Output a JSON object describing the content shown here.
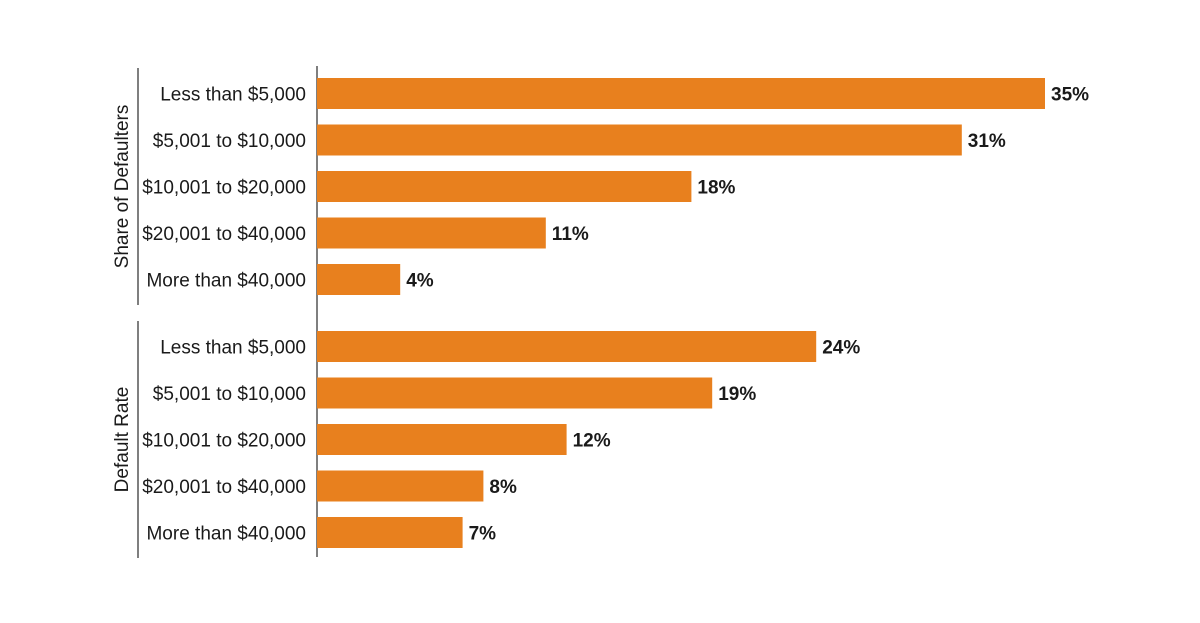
{
  "chart_data": [
    {
      "type": "bar",
      "orientation": "horizontal",
      "group_label": "Share of Defaulters",
      "categories": [
        "Less than $5,000",
        "$5,001 to $10,000",
        "$10,001 to $20,000",
        "$20,001 to $40,000",
        "More than $40,000"
      ],
      "values": [
        35,
        31,
        18,
        11,
        4
      ],
      "value_labels": [
        "35%",
        "31%",
        "18%",
        "11%",
        "4%"
      ],
      "unit": "%",
      "xlim": [
        0,
        35
      ],
      "grid": false,
      "color": "#E8801E"
    },
    {
      "type": "bar",
      "orientation": "horizontal",
      "group_label": "Default Rate",
      "categories": [
        "Less than $5,000",
        "$5,001 to $10,000",
        "$10,001 to $20,000",
        "$20,001 to $40,000",
        "More than $40,000"
      ],
      "values": [
        24,
        19,
        12,
        8,
        7
      ],
      "value_labels": [
        "24%",
        "19%",
        "12%",
        "8%",
        "7%"
      ],
      "unit": "%",
      "xlim": [
        0,
        35
      ],
      "grid": false,
      "color": "#E8801E"
    }
  ]
}
